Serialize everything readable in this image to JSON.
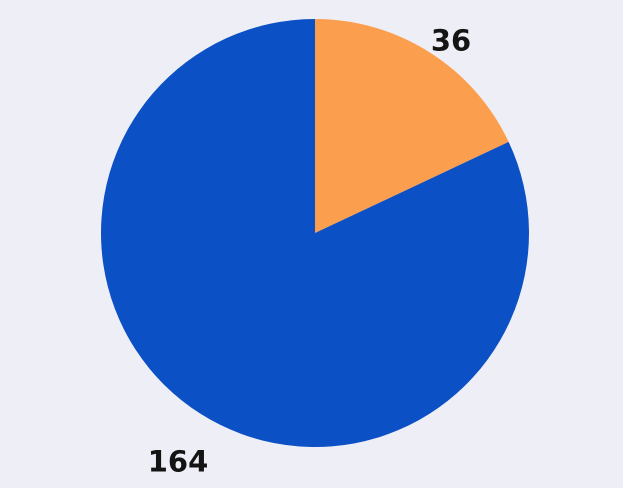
{
  "page": {
    "background_color": "#eeeef6",
    "label_text_color": "#141414"
  },
  "chart_data": {
    "type": "pie",
    "title": "",
    "legend": "none",
    "direction": "clockwise",
    "start_angle": "12-o-clock",
    "total": 200,
    "slices": [
      {
        "label": "36",
        "value": 36,
        "color": "#fb9e4e"
      },
      {
        "label": "164",
        "value": 164,
        "color": "#0b50c4"
      }
    ]
  }
}
